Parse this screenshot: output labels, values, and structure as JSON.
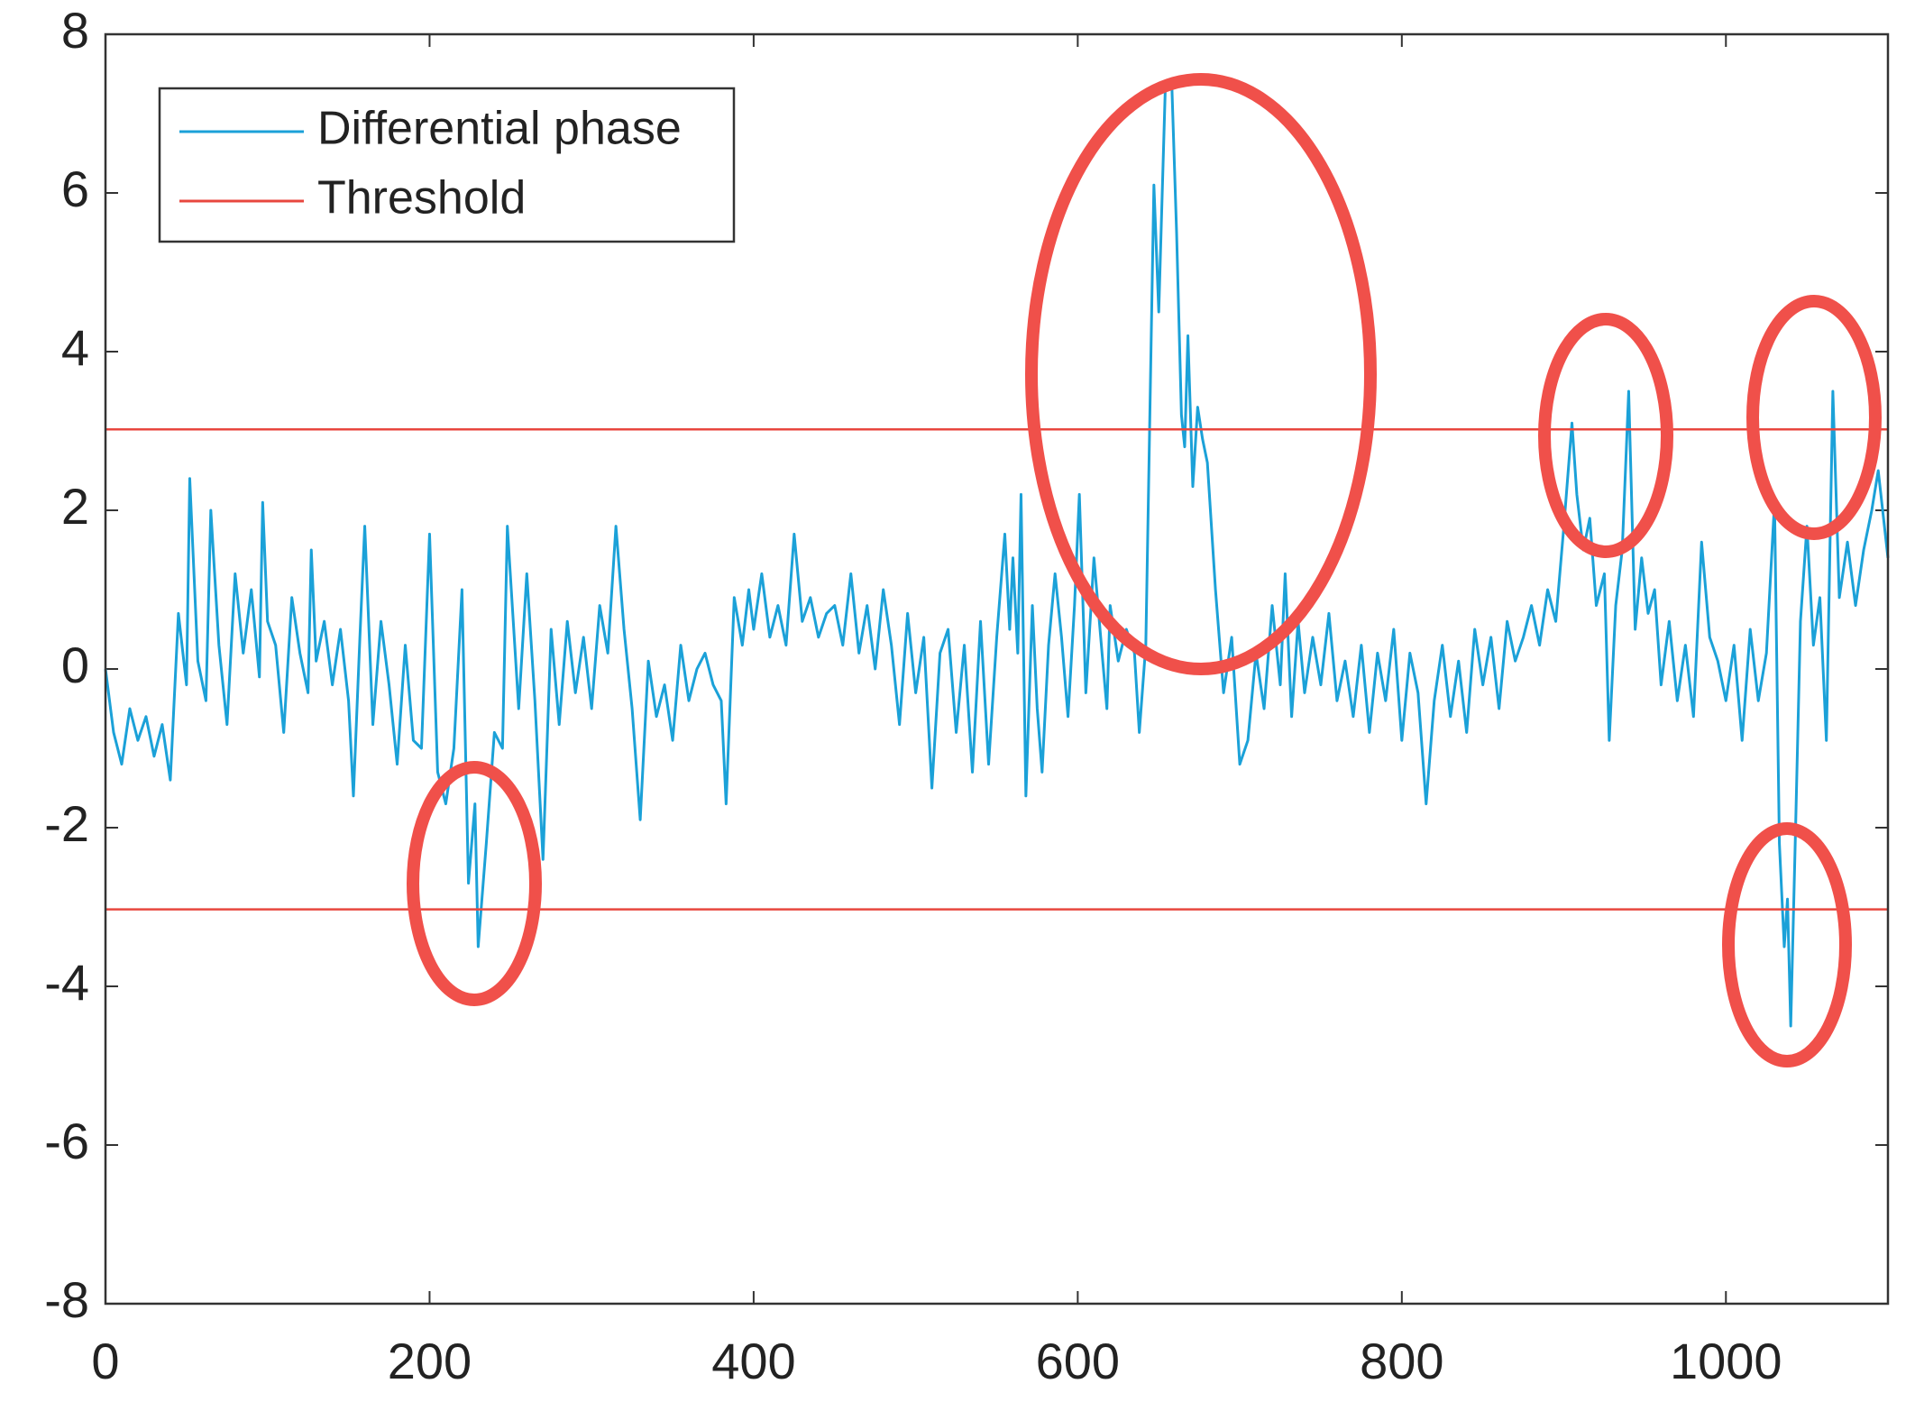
{
  "chart_data": {
    "type": "line",
    "x": [
      0,
      5,
      10,
      15,
      20,
      25,
      30,
      35,
      40,
      45,
      50,
      52,
      57,
      62,
      65,
      70,
      75,
      80,
      85,
      90,
      95,
      97,
      100,
      105,
      110,
      115,
      120,
      125,
      127,
      130,
      135,
      140,
      145,
      150,
      153,
      157,
      160,
      165,
      170,
      175,
      180,
      185,
      190,
      195,
      200,
      205,
      210,
      215,
      220,
      224,
      228,
      230,
      235,
      240,
      245,
      248,
      255,
      260,
      265,
      270,
      275,
      280,
      285,
      290,
      295,
      300,
      305,
      310,
      315,
      320,
      325,
      330,
      335,
      340,
      345,
      350,
      355,
      360,
      365,
      370,
      375,
      380,
      383,
      388,
      393,
      397,
      400,
      405,
      410,
      415,
      420,
      425,
      430,
      435,
      440,
      445,
      450,
      455,
      460,
      465,
      470,
      475,
      480,
      485,
      490,
      495,
      500,
      505,
      510,
      515,
      520,
      525,
      530,
      535,
      540,
      545,
      550,
      555,
      558,
      560,
      563,
      565,
      568,
      572,
      575,
      578,
      582,
      586,
      590,
      594,
      598,
      601,
      605,
      610,
      615,
      618,
      620,
      625,
      630,
      635,
      638,
      642,
      647,
      650,
      654,
      658,
      661,
      664,
      666,
      668,
      671,
      674,
      677,
      680,
      685,
      690,
      695,
      700,
      705,
      710,
      715,
      720,
      725,
      728,
      732,
      736,
      740,
      745,
      750,
      755,
      760,
      765,
      770,
      775,
      780,
      785,
      790,
      795,
      800,
      805,
      810,
      815,
      820,
      825,
      830,
      835,
      840,
      845,
      850,
      855,
      860,
      865,
      870,
      875,
      880,
      885,
      890,
      895,
      900,
      905,
      908,
      912,
      916,
      920,
      925,
      928,
      932,
      936,
      940,
      944,
      948,
      952,
      956,
      960,
      965,
      970,
      975,
      980,
      985,
      990,
      995,
      1000,
      1005,
      1010,
      1015,
      1020,
      1025,
      1030,
      1033,
      1036,
      1038,
      1040,
      1043,
      1046,
      1050,
      1054,
      1058,
      1062,
      1066,
      1070,
      1075,
      1080,
      1085,
      1090,
      1094,
      1100
    ],
    "series": [
      {
        "name": "Differential phase",
        "color": "#1ba1d8",
        "values": [
          0,
          -0.8,
          -1.2,
          -0.5,
          -0.9,
          -0.6,
          -1.1,
          -0.7,
          -1.4,
          0.7,
          -0.2,
          2.4,
          0.1,
          -0.4,
          2.0,
          0.3,
          -0.7,
          1.2,
          0.2,
          1.0,
          -0.1,
          2.1,
          0.6,
          0.3,
          -0.8,
          0.9,
          0.2,
          -0.3,
          1.5,
          0.1,
          0.6,
          -0.2,
          0.5,
          -0.4,
          -1.6,
          0.4,
          1.8,
          -0.7,
          0.6,
          -0.2,
          -1.2,
          0.3,
          -0.9,
          -1.0,
          1.7,
          -1.3,
          -1.7,
          -1.0,
          1.0,
          -2.7,
          -1.7,
          -3.5,
          -2.2,
          -0.8,
          -1.0,
          1.8,
          -0.5,
          1.2,
          -0.4,
          -2.4,
          0.5,
          -0.7,
          0.6,
          -0.3,
          0.4,
          -0.5,
          0.8,
          0.2,
          1.8,
          0.5,
          -0.5,
          -1.9,
          0.1,
          -0.6,
          -0.2,
          -0.9,
          0.3,
          -0.4,
          0.0,
          0.2,
          -0.2,
          -0.4,
          -1.7,
          0.9,
          0.3,
          1.0,
          0.5,
          1.2,
          0.4,
          0.8,
          0.3,
          1.7,
          0.6,
          0.9,
          0.4,
          0.7,
          0.8,
          0.3,
          1.2,
          0.2,
          0.8,
          0.0,
          1.0,
          0.3,
          -0.7,
          0.7,
          -0.3,
          0.4,
          -1.5,
          0.2,
          0.5,
          -0.8,
          0.3,
          -1.3,
          0.6,
          -1.2,
          0.4,
          1.7,
          0.5,
          1.4,
          0.2,
          2.2,
          -1.6,
          0.8,
          -0.5,
          -1.3,
          0.3,
          1.2,
          0.4,
          -0.6,
          0.8,
          2.2,
          -0.3,
          1.4,
          0.2,
          -0.5,
          0.8,
          0.1,
          0.5,
          0.2,
          -0.8,
          0.3,
          6.1,
          4.5,
          7.3,
          7.4,
          5.5,
          3.2,
          2.8,
          4.2,
          2.3,
          3.3,
          2.9,
          2.6,
          1.0,
          -0.3,
          0.4,
          -1.2,
          -0.9,
          0.2,
          -0.5,
          0.8,
          -0.2,
          1.2,
          -0.6,
          0.6,
          -0.3,
          0.4,
          -0.2,
          0.7,
          -0.4,
          0.1,
          -0.6,
          0.3,
          -0.8,
          0.2,
          -0.4,
          0.5,
          -0.9,
          0.2,
          -0.3,
          -1.7,
          -0.4,
          0.3,
          -0.6,
          0.1,
          -0.8,
          0.5,
          -0.2,
          0.4,
          -0.5,
          0.6,
          0.1,
          0.4,
          0.8,
          0.3,
          1.0,
          0.6,
          1.8,
          3.1,
          2.2,
          1.5,
          1.9,
          0.8,
          1.2,
          -0.9,
          0.8,
          1.5,
          3.5,
          0.5,
          1.4,
          0.7,
          1.0,
          -0.2,
          0.6,
          -0.4,
          0.3,
          -0.6,
          1.6,
          0.4,
          0.1,
          -0.4,
          0.3,
          -0.9,
          0.5,
          -0.4,
          0.2,
          2.1,
          -2.2,
          -3.5,
          -2.9,
          -4.5,
          -2.0,
          0.6,
          1.8,
          0.3,
          0.9,
          -0.9,
          3.5,
          0.9,
          1.6,
          0.8,
          1.5,
          2.0,
          2.5,
          1.4
        ]
      },
      {
        "name": "Threshold",
        "color": "#e8473f",
        "x": [
          0,
          1100,
          1100,
          0,
          1100
        ],
        "values": [
          3.02,
          3.02,
          null,
          -3.03,
          -3.03
        ]
      }
    ],
    "xlim": [
      0,
      1100
    ],
    "ylim": [
      -8,
      8
    ],
    "xticks": [
      0,
      200,
      400,
      600,
      800,
      1000
    ],
    "yticks": [
      -8,
      -6,
      -4,
      -2,
      0,
      2,
      4,
      6,
      8
    ],
    "legend": "upper left"
  }
}
